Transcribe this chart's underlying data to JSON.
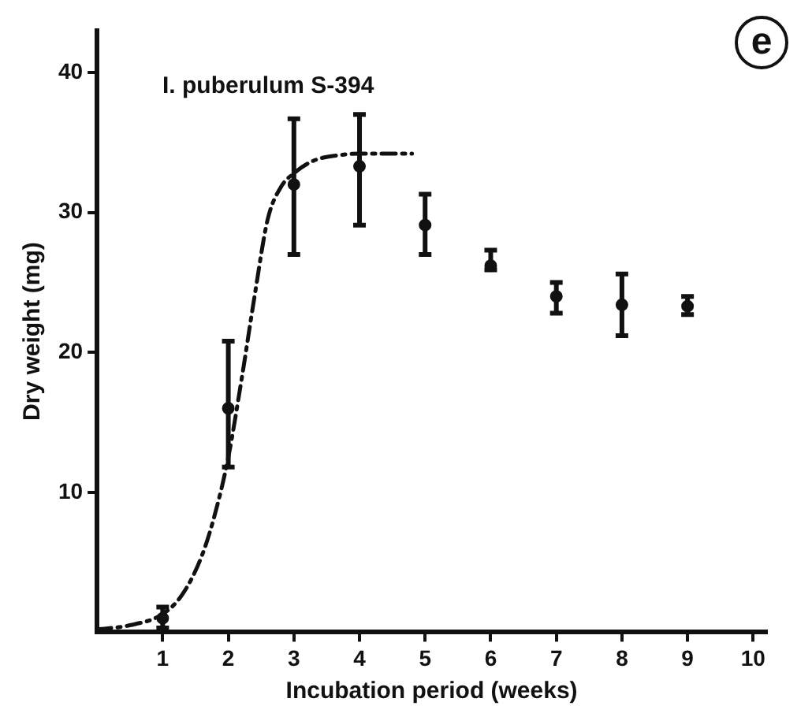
{
  "chart_data": {
    "type": "scatter",
    "xlabel": "Incubation period (weeks)",
    "ylabel": "Dry weight (mg)",
    "annotations": [
      "I. puberulum S-394",
      "e"
    ],
    "xlim": [
      0,
      10.2
    ],
    "xticks": [
      1,
      2,
      3,
      4,
      5,
      6,
      7,
      8,
      9,
      10
    ],
    "ylim": [
      0,
      43
    ],
    "yticks": [
      10,
      20,
      30,
      40
    ],
    "grid": false,
    "legend": false,
    "series": [
      {
        "type": "line",
        "color": "#111111",
        "line_style": "dashed",
        "marker": "none",
        "x": [
          0,
          0.5,
          1,
          1.3,
          1.6,
          1.8,
          2,
          2.2,
          2.4,
          2.6,
          2.8,
          3,
          3.3,
          3.7,
          4,
          4.8
        ],
        "values": [
          0.2,
          0.5,
          1.3,
          2.7,
          5.5,
          8.5,
          12.5,
          18,
          24,
          29.5,
          31.8,
          32.8,
          33.7,
          34.1,
          34.2,
          34.2
        ]
      },
      {
        "color": "#111111",
        "marker": "circle",
        "x": [
          1,
          2,
          3,
          4,
          5,
          6,
          7,
          8,
          9
        ],
        "values": [
          1,
          16,
          32,
          33.3,
          29.1,
          26.2,
          24,
          23.4,
          23.3
        ],
        "errors": [
          [
            0.3,
            1.8
          ],
          [
            11.8,
            20.8
          ],
          [
            27,
            36.7
          ],
          [
            29.1,
            37
          ],
          [
            27,
            31.3
          ],
          [
            25.9,
            27.3
          ],
          [
            22.8,
            25
          ],
          [
            21.2,
            25.6
          ],
          [
            22.7,
            24
          ]
        ]
      }
    ]
  }
}
